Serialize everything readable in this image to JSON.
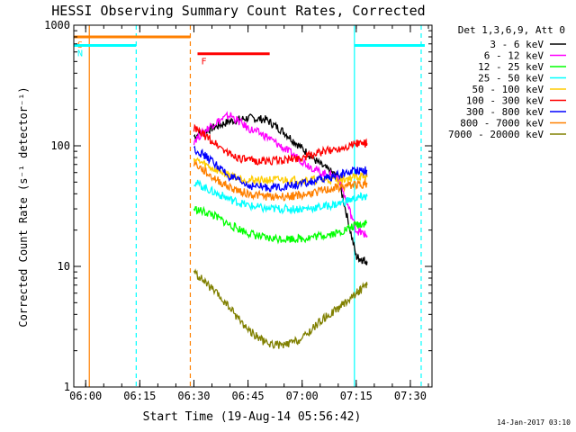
{
  "chart_data": {
    "type": "line",
    "title": "HESSI Observing Summary Count Rates, Corrected",
    "xlabel": "Start Time (19-Aug-14 05:56:42)",
    "ylabel": "Corrected Count Rate (s⁻¹ detector⁻¹)",
    "y_scale": "log",
    "ylim": [
      1,
      1000
    ],
    "xlim": [
      "05:56:42",
      "07:36:00"
    ],
    "x_ticks": [
      "06:00",
      "06:15",
      "06:30",
      "06:45",
      "07:00",
      "07:15",
      "07:30"
    ],
    "y_ticks": [
      "1",
      "10",
      "100",
      "1000"
    ],
    "legend_title": "Det 1,3,6,9, Att 0",
    "legend_position": "right",
    "timestamp": "14-Jan-2017 03:10",
    "x_unit": "minutes",
    "series": [
      {
        "name": "3 - 6 keV",
        "color": "#000000",
        "x": [
          "06:30",
          "06:35",
          "06:40",
          "06:45",
          "06:50",
          "06:55",
          "07:00",
          "07:05",
          "07:10",
          "07:15",
          "07:18"
        ],
        "y": [
          120,
          140,
          160,
          170,
          165,
          130,
          95,
          70,
          55,
          12,
          11
        ]
      },
      {
        "name": "6 - 12 keV",
        "color": "#ff00ff",
        "x": [
          "06:30",
          "06:35",
          "06:40",
          "06:45",
          "06:50",
          "06:55",
          "07:00",
          "07:05",
          "07:10",
          "07:15",
          "07:18"
        ],
        "y": [
          110,
          150,
          180,
          140,
          120,
          95,
          75,
          60,
          55,
          20,
          18
        ]
      },
      {
        "name": "12 - 25 keV",
        "color": "#00ff00",
        "x": [
          "06:30",
          "06:35",
          "06:40",
          "06:45",
          "06:50",
          "06:55",
          "07:00",
          "07:05",
          "07:10",
          "07:15",
          "07:18"
        ],
        "y": [
          30,
          27,
          22,
          19,
          17,
          17,
          17,
          18,
          19,
          22,
          23
        ]
      },
      {
        "name": "25 - 50 keV",
        "color": "#00ffff",
        "x": [
          "06:30",
          "06:35",
          "06:40",
          "06:45",
          "06:50",
          "06:55",
          "07:00",
          "07:05",
          "07:10",
          "07:15",
          "07:18"
        ],
        "y": [
          50,
          42,
          36,
          32,
          30,
          30,
          30,
          31,
          33,
          37,
          38
        ]
      },
      {
        "name": "50 - 100 keV",
        "color": "#ffcc00",
        "x": [
          "06:30",
          "06:35",
          "06:40",
          "06:45",
          "06:50",
          "06:55",
          "07:00",
          "07:05",
          "07:10",
          "07:15",
          "07:18"
        ],
        "y": [
          78,
          65,
          57,
          52,
          52,
          52,
          52,
          52,
          52,
          55,
          55
        ]
      },
      {
        "name": "100 - 300 keV",
        "color": "#ff0000",
        "x": [
          "06:30",
          "06:35",
          "06:40",
          "06:45",
          "06:50",
          "06:55",
          "07:00",
          "07:05",
          "07:10",
          "07:15",
          "07:18"
        ],
        "y": [
          140,
          110,
          85,
          75,
          75,
          76,
          80,
          88,
          95,
          105,
          105
        ]
      },
      {
        "name": "300 - 800 keV",
        "color": "#0000ff",
        "x": [
          "06:30",
          "06:35",
          "06:40",
          "06:45",
          "06:50",
          "06:55",
          "07:00",
          "07:05",
          "07:10",
          "07:15",
          "07:18"
        ],
        "y": [
          95,
          75,
          55,
          47,
          45,
          46,
          48,
          52,
          57,
          63,
          63
        ]
      },
      {
        "name": "800 - 7000 keV",
        "color": "#ff8000",
        "x": [
          "06:30",
          "06:35",
          "06:40",
          "06:45",
          "06:50",
          "06:55",
          "07:00",
          "07:05",
          "07:10",
          "07:15",
          "07:18"
        ],
        "y": [
          72,
          55,
          45,
          40,
          38,
          38,
          39,
          42,
          45,
          48,
          48
        ]
      },
      {
        "name": "7000 - 20000 keV",
        "color": "#808000",
        "x": [
          "06:30",
          "06:35",
          "06:40",
          "06:45",
          "06:50",
          "06:55",
          "07:00",
          "07:05",
          "07:10",
          "07:15",
          "07:18"
        ],
        "y": [
          9,
          6.5,
          4.5,
          3,
          2.3,
          2.2,
          2.5,
          3.5,
          4.5,
          6,
          7
        ]
      }
    ],
    "annotations": [
      {
        "label": "S",
        "color": "#ff8000",
        "x_start": "05:56:42",
        "x_end": "06:29:00",
        "y": 800,
        "type": "bar"
      },
      {
        "label": "N",
        "color": "#00ffff",
        "x_start": "05:56:42",
        "x_end": "06:14:00",
        "y": 680,
        "type": "bar"
      },
      {
        "label": "F",
        "color": "#ff0000",
        "x_start": "06:31:00",
        "x_end": "06:51:00",
        "y": 580,
        "type": "bar"
      },
      {
        "label": "",
        "color": "#00ffff",
        "x_start": "07:14:30",
        "x_end": "07:34:00",
        "y": 680,
        "type": "bar"
      }
    ],
    "vlines": [
      {
        "x": "06:01",
        "color": "#ff8000",
        "style": "solid"
      },
      {
        "x": "06:14",
        "color": "#00ffff",
        "style": "dashed"
      },
      {
        "x": "06:29",
        "color": "#ff8000",
        "style": "dashed"
      },
      {
        "x": "07:14:30",
        "color": "#00ffff",
        "style": "solid"
      },
      {
        "x": "07:33",
        "color": "#00ffff",
        "style": "dashed"
      }
    ]
  }
}
